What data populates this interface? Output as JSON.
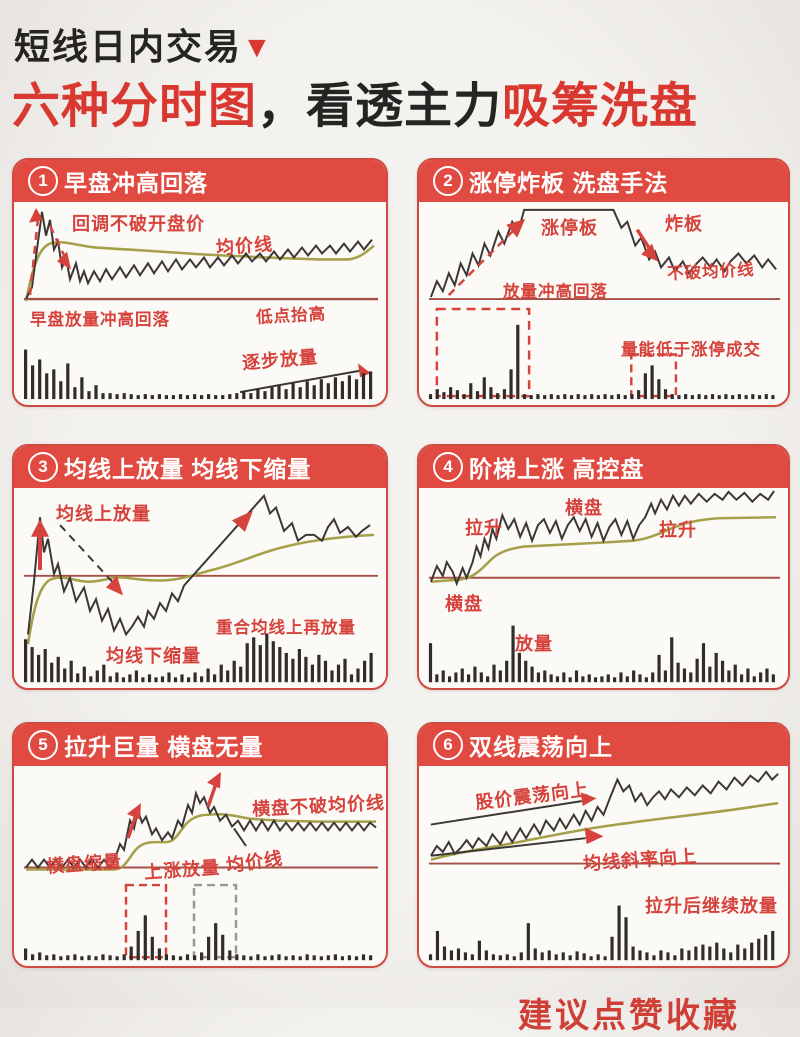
{
  "page": {
    "title_line1": "短线日内交易",
    "title_arrow": "▼",
    "title_line2": {
      "red1": "六种分时图",
      "black": "，看透主力",
      "red2": "吸筹洗盘"
    },
    "bottom_partial_text": "建议点赞收藏",
    "colors": {
      "header_red": "#e14a40",
      "annotation_red": "#d6423c",
      "price_line": "#3a3734",
      "avg_price_line": "#a6a04a",
      "baseline_red": "#a34f45",
      "background": "#f0eeea",
      "panel_bg": "#fcfaf7"
    }
  },
  "panels": [
    {
      "num": "1",
      "title": "早盘冲高回落",
      "annotations": {
        "a1": "回调不破开盘价",
        "a2": "均价线",
        "a3": "早盘放量冲高回落",
        "a4": "低点抬高",
        "a5": "逐步放量"
      },
      "volume": [
        50,
        34,
        40,
        26,
        30,
        18,
        36,
        12,
        22,
        8,
        14,
        6,
        6,
        5,
        6,
        5,
        4,
        5,
        4,
        5,
        4,
        4,
        5,
        4,
        5,
        4,
        5,
        4,
        4,
        5,
        6,
        8,
        6,
        10,
        8,
        12,
        14,
        10,
        16,
        12,
        18,
        14,
        20,
        16,
        22,
        18,
        24,
        20,
        26,
        28
      ]
    },
    {
      "num": "2",
      "title": "涨停炸板 洗盘手法",
      "annotations": {
        "a1": "涨停板",
        "a2": "炸板",
        "a3": "不破均价线",
        "a4": "放量冲高回落",
        "a5": "量能低于涨停成交"
      },
      "volume": [
        5,
        10,
        7,
        12,
        9,
        5,
        16,
        8,
        22,
        12,
        6,
        10,
        30,
        75,
        5,
        4,
        5,
        4,
        5,
        4,
        5,
        4,
        5,
        4,
        5,
        4,
        5,
        4,
        5,
        4,
        5,
        9,
        26,
        34,
        20,
        10,
        5,
        4,
        5,
        4,
        5,
        4,
        5,
        4,
        5,
        4,
        5,
        4,
        5,
        4,
        5,
        4
      ]
    },
    {
      "num": "3",
      "title": "均线上放量 均线下缩量",
      "annotations": {
        "a1": "均线上放量",
        "a2": "均线下缩量",
        "a3": "重合均线上再放量"
      },
      "volume": [
        44,
        36,
        28,
        34,
        20,
        26,
        14,
        22,
        9,
        16,
        6,
        12,
        18,
        6,
        10,
        5,
        8,
        12,
        5,
        8,
        5,
        6,
        10,
        5,
        8,
        5,
        10,
        6,
        14,
        8,
        18,
        12,
        22,
        16,
        40,
        46,
        38,
        50,
        42,
        36,
        30,
        24,
        34,
        26,
        18,
        28,
        22,
        12,
        18,
        24,
        8,
        14,
        22,
        30
      ]
    },
    {
      "num": "4",
      "title": "阶梯上涨 高控盘",
      "annotations": {
        "a1": "拉升",
        "a2": "横盘",
        "a3": "拉升",
        "a4": "横盘",
        "a5": "放量"
      },
      "volume": [
        40,
        8,
        12,
        6,
        10,
        14,
        8,
        16,
        10,
        6,
        18,
        12,
        22,
        58,
        30,
        22,
        16,
        10,
        12,
        8,
        6,
        10,
        5,
        12,
        6,
        8,
        5,
        6,
        8,
        5,
        10,
        6,
        12,
        8,
        5,
        10,
        28,
        12,
        46,
        20,
        14,
        10,
        24,
        40,
        16,
        30,
        22,
        12,
        18,
        8,
        14,
        6,
        10,
        14,
        8
      ]
    },
    {
      "num": "5",
      "title": "拉升巨量 横盘无量",
      "annotations": {
        "a1": "横盘不破均价线",
        "a2": "横盘缩量",
        "a3": "上涨放量",
        "a4": "均价线"
      },
      "volume": [
        12,
        6,
        8,
        5,
        6,
        4,
        5,
        6,
        4,
        5,
        4,
        6,
        5,
        4,
        6,
        14,
        30,
        46,
        24,
        12,
        6,
        5,
        4,
        6,
        5,
        8,
        24,
        38,
        26,
        10,
        6,
        5,
        4,
        6,
        4,
        5,
        6,
        4,
        5,
        4,
        6,
        5,
        4,
        5,
        6,
        4,
        5,
        4,
        6,
        5
      ]
    },
    {
      "num": "6",
      "title": "双线震荡向上",
      "annotations": {
        "a1": "股价震荡向上",
        "a2": "均线斜率向上",
        "a3": "拉升后继续放量"
      },
      "volume": [
        6,
        30,
        14,
        10,
        12,
        8,
        6,
        20,
        10,
        6,
        5,
        6,
        4,
        8,
        38,
        12,
        8,
        10,
        6,
        8,
        5,
        9,
        7,
        4,
        6,
        4,
        24,
        56,
        44,
        14,
        10,
        8,
        5,
        10,
        8,
        5,
        12,
        10,
        14,
        16,
        14,
        18,
        12,
        8,
        16,
        12,
        18,
        22,
        26,
        30
      ]
    }
  ]
}
